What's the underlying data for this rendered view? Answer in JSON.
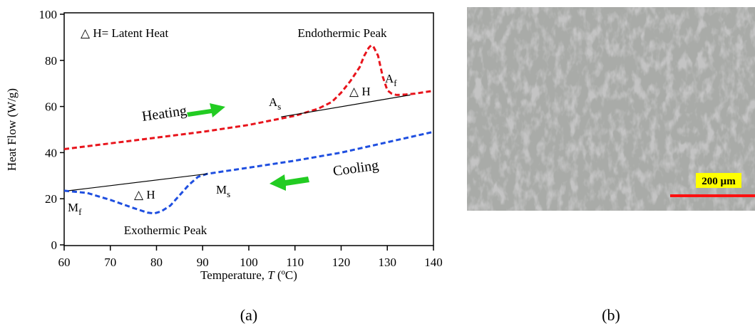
{
  "chart_data": {
    "type": "line",
    "x_label": {
      "pre": "Temperature, ",
      "var": "T",
      "post": " (ºC)"
    },
    "y_label": "Heat Flow (W/g)",
    "xlim": [
      60,
      140
    ],
    "xticks": [
      60,
      70,
      80,
      90,
      100,
      110,
      120,
      130,
      140
    ],
    "ylim": [
      0,
      100
    ],
    "yticks": [
      0,
      20,
      40,
      60,
      80,
      100
    ],
    "series": [
      {
        "name": "Heating",
        "color": "#e8141c",
        "dash": true,
        "x": [
          60,
          70,
          80,
          90,
          100,
          105,
          110,
          115,
          118,
          120,
          122,
          124,
          125,
          126,
          126.5,
          127,
          128,
          129,
          130,
          131,
          132,
          134,
          136,
          138,
          140
        ],
        "values": [
          41.5,
          44,
          46.5,
          49,
          52,
          54,
          56,
          59,
          62,
          66,
          71,
          77,
          82,
          85.5,
          86.5,
          86,
          82,
          73,
          67,
          65.5,
          65,
          65.2,
          65.6,
          66.2,
          66.8
        ]
      },
      {
        "name": "Cooling",
        "color": "#1f4fe0",
        "dash": true,
        "x": [
          60,
          65,
          70,
          75,
          78,
          79.5,
          81,
          83,
          85,
          87,
          89,
          91,
          95,
          100,
          110,
          120,
          130,
          140
        ],
        "values": [
          23.5,
          22.5,
          19.5,
          16,
          14,
          13.6,
          14.5,
          17,
          21.5,
          26,
          29.5,
          30.8,
          32,
          33.5,
          36.5,
          40,
          44.5,
          49
        ]
      },
      {
        "color": "#000000",
        "dash": false,
        "x": [
          107,
          135
        ],
        "values": [
          55.5,
          65
        ]
      },
      {
        "color": "#000000",
        "dash": false,
        "x": [
          61,
          91
        ],
        "values": [
          23.5,
          30.8
        ]
      }
    ],
    "annotations": [
      {
        "text": "△  H= Latent Heat"
      },
      {
        "text": "Endothermic Peak"
      },
      {
        "text": "A",
        "sub": "s"
      },
      {
        "text": "△  H"
      },
      {
        "text": "A",
        "sub": "f"
      },
      {
        "text": "M",
        "sub": "s"
      },
      {
        "text": "△  H"
      },
      {
        "text": "M",
        "sub": "f"
      },
      {
        "text": "Exothermic Peak"
      }
    ],
    "panel_label": "(a)"
  },
  "micrograph": {
    "scale_bar": "200 µm",
    "panel_label": "(b)"
  }
}
